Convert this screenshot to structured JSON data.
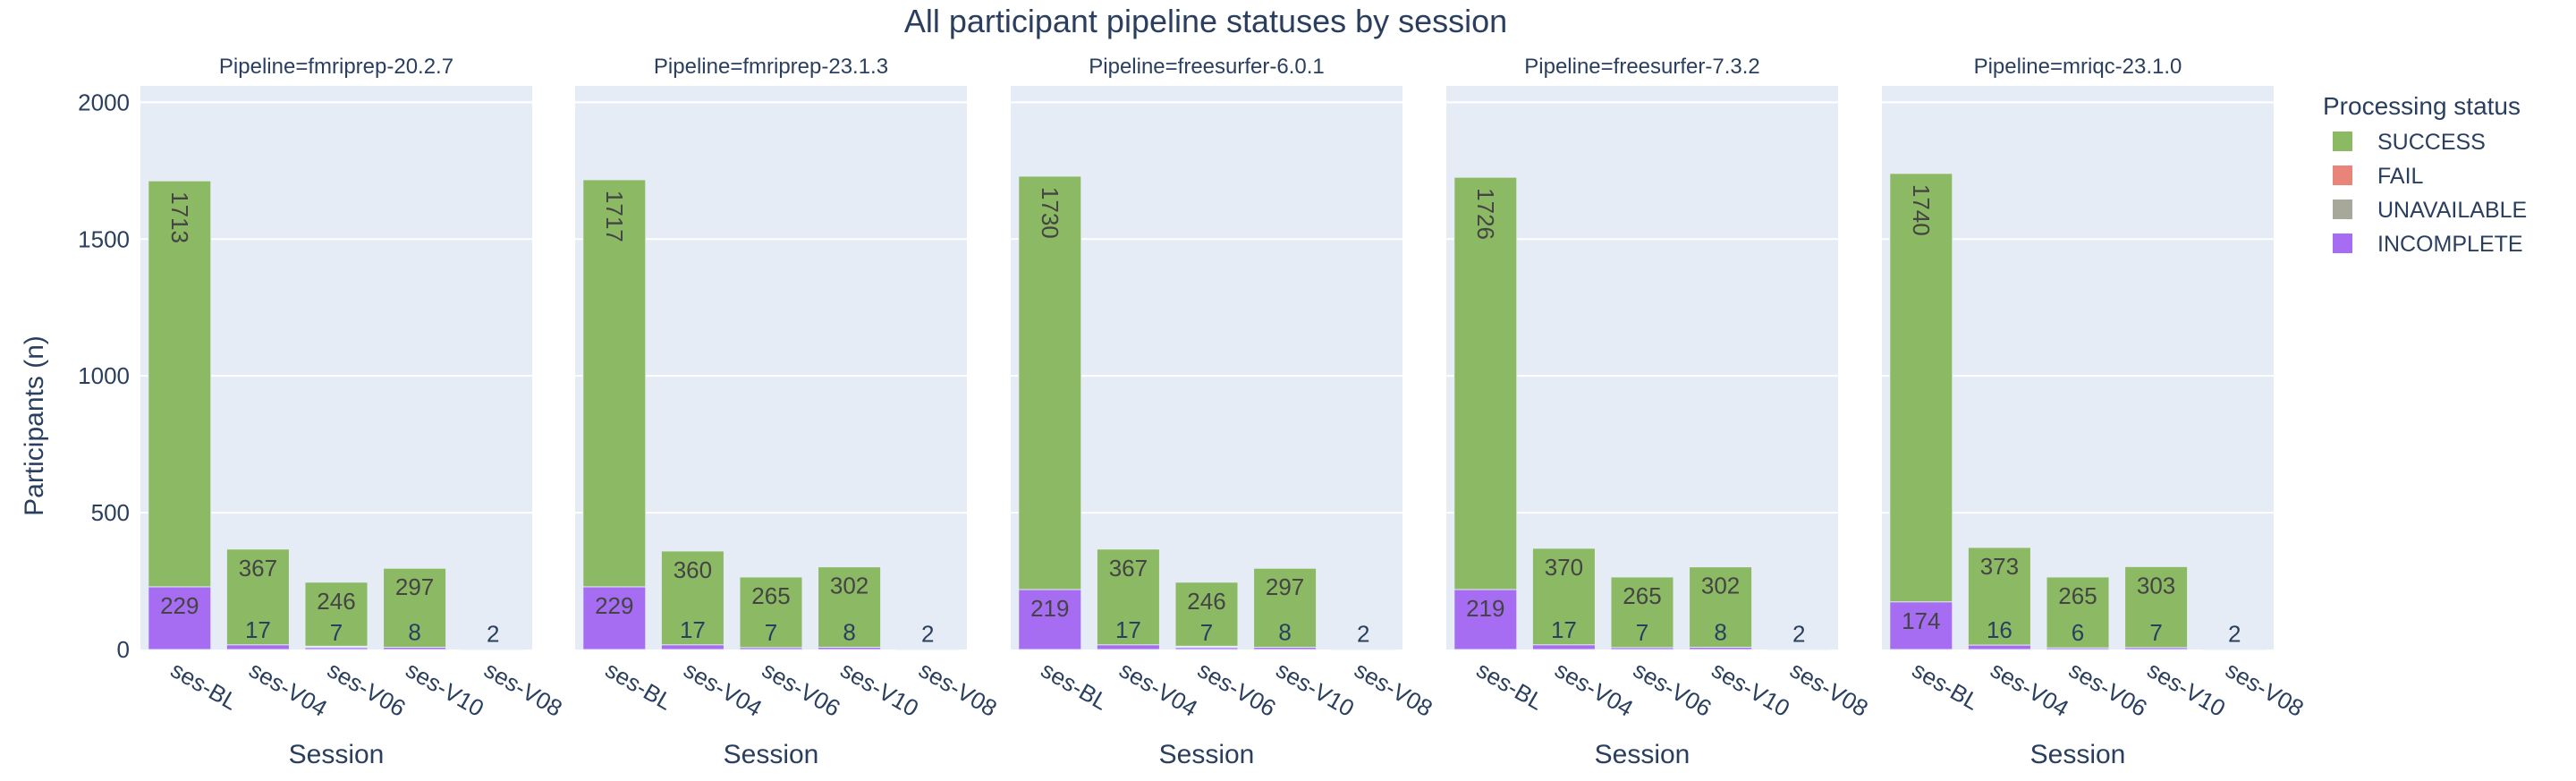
{
  "chart_data": {
    "type": "bar",
    "title": "All participant pipeline statuses by session",
    "ylabel": "Participants (n)",
    "ylim": [
      0,
      2060
    ],
    "yticks": [
      0,
      500,
      1000,
      1500,
      2000
    ],
    "grid": true,
    "legend": {
      "title": "Processing status",
      "placement": "right",
      "entries": [
        {
          "name": "SUCCESS",
          "color": "#8cb963"
        },
        {
          "name": "FAIL",
          "color": "#e8847a"
        },
        {
          "name": "UNAVAILABLE",
          "color": "#a7a89a"
        },
        {
          "name": "INCOMPLETE",
          "color": "#a66cf2"
        }
      ]
    },
    "colors": {
      "plot_background": "#e5ecf6",
      "text": "#2a3f5f",
      "bar_label": "#444444",
      "success": "#8cb963",
      "fail": "#e8847a",
      "unavailable": "#a7a89a",
      "incomplete": "#a66cf2"
    },
    "facets": [
      {
        "title": "Pipeline=fmriprep-20.2.7",
        "xlabel": "Session",
        "categories": [
          "ses-BL",
          "ses-V04",
          "ses-V06",
          "ses-V10",
          "ses-V08"
        ],
        "series": [
          {
            "name": "SUCCESS",
            "values": [
              1713,
              367,
              246,
              297,
              0
            ],
            "labels": [
              "1713",
              "367",
              "246",
              "297",
              ""
            ]
          },
          {
            "name": "FAIL",
            "values": [
              15,
              5,
              12,
              4,
              0
            ],
            "labels": [
              "",
              "",
              "",
              "",
              ""
            ]
          },
          {
            "name": "UNAVAILABLE",
            "values": [
              10,
              5,
              10,
              4,
              0
            ],
            "labels": [
              "",
              "",
              "",
              "",
              ""
            ]
          },
          {
            "name": "INCOMPLETE",
            "values": [
              229,
              17,
              7,
              8,
              2
            ],
            "labels": [
              "229",
              "17",
              "7",
              "8",
              "2"
            ]
          }
        ]
      },
      {
        "title": "Pipeline=fmriprep-23.1.3",
        "xlabel": "Session",
        "categories": [
          "ses-BL",
          "ses-V04",
          "ses-V06",
          "ses-V10",
          "ses-V08"
        ],
        "series": [
          {
            "name": "SUCCESS",
            "values": [
              1717,
              360,
              265,
              302,
              0
            ],
            "labels": [
              "1717",
              "360",
              "265",
              "302",
              ""
            ]
          },
          {
            "name": "FAIL",
            "values": [
              11,
              10,
              2,
              2,
              0
            ],
            "labels": [
              "",
              "",
              "",
              "",
              ""
            ]
          },
          {
            "name": "UNAVAILABLE",
            "values": [
              10,
              5,
              5,
              3,
              0
            ],
            "labels": [
              "",
              "",
              "",
              "",
              ""
            ]
          },
          {
            "name": "INCOMPLETE",
            "values": [
              229,
              17,
              7,
              8,
              2
            ],
            "labels": [
              "229",
              "17",
              "7",
              "8",
              "2"
            ]
          }
        ]
      },
      {
        "title": "Pipeline=freesurfer-6.0.1",
        "xlabel": "Session",
        "categories": [
          "ses-BL",
          "ses-V04",
          "ses-V06",
          "ses-V10",
          "ses-V08"
        ],
        "series": [
          {
            "name": "SUCCESS",
            "values": [
              1730,
              367,
              246,
              297,
              0
            ],
            "labels": [
              "1730",
              "367",
              "246",
              "297",
              ""
            ]
          },
          {
            "name": "FAIL",
            "values": [
              8,
              5,
              12,
              4,
              0
            ],
            "labels": [
              "",
              "",
              "",
              "",
              ""
            ]
          },
          {
            "name": "UNAVAILABLE",
            "values": [
              10,
              5,
              10,
              4,
              0
            ],
            "labels": [
              "",
              "",
              "",
              "",
              ""
            ]
          },
          {
            "name": "INCOMPLETE",
            "values": [
              219,
              17,
              7,
              8,
              2
            ],
            "labels": [
              "219",
              "17",
              "7",
              "8",
              "2"
            ]
          }
        ]
      },
      {
        "title": "Pipeline=freesurfer-7.3.2",
        "xlabel": "Session",
        "categories": [
          "ses-BL",
          "ses-V04",
          "ses-V06",
          "ses-V10",
          "ses-V08"
        ],
        "series": [
          {
            "name": "SUCCESS",
            "values": [
              1726,
              370,
              265,
              302,
              0
            ],
            "labels": [
              "1726",
              "370",
              "265",
              "302",
              ""
            ]
          },
          {
            "name": "FAIL",
            "values": [
              12,
              2,
              2,
              2,
              0
            ],
            "labels": [
              "",
              "",
              "",
              "",
              ""
            ]
          },
          {
            "name": "UNAVAILABLE",
            "values": [
              10,
              5,
              5,
              3,
              0
            ],
            "labels": [
              "",
              "",
              "",
              "",
              ""
            ]
          },
          {
            "name": "INCOMPLETE",
            "values": [
              219,
              17,
              7,
              8,
              2
            ],
            "labels": [
              "219",
              "17",
              "7",
              "8",
              "2"
            ]
          }
        ]
      },
      {
        "title": "Pipeline=mriqc-23.1.0",
        "xlabel": "Session",
        "categories": [
          "ses-BL",
          "ses-V04",
          "ses-V06",
          "ses-V10",
          "ses-V08"
        ],
        "series": [
          {
            "name": "SUCCESS",
            "values": [
              1740,
              373,
              265,
              303,
              0
            ],
            "labels": [
              "1740",
              "373",
              "265",
              "303",
              ""
            ]
          },
          {
            "name": "FAIL",
            "values": [
              43,
              0,
              0,
              0,
              0
            ],
            "labels": [
              "",
              "",
              "",
              "",
              ""
            ]
          },
          {
            "name": "UNAVAILABLE",
            "values": [
              10,
              5,
              5,
              3,
              0
            ],
            "labels": [
              "",
              "",
              "",
              "",
              ""
            ]
          },
          {
            "name": "INCOMPLETE",
            "values": [
              174,
              16,
              6,
              7,
              2
            ],
            "labels": [
              "174",
              "16",
              "6",
              "7",
              "2"
            ]
          }
        ]
      }
    ]
  }
}
